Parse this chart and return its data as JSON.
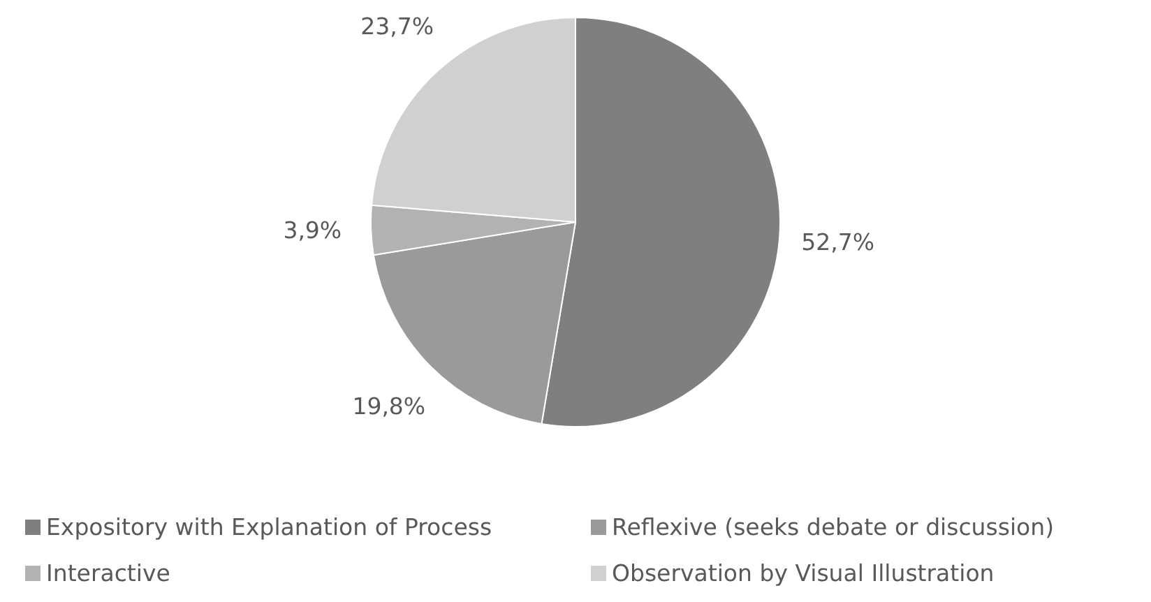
{
  "chart_data": {
    "type": "pie",
    "categories": [
      "Expository with Explanation of Process",
      "Reflexive (seeks debate or discussion)",
      "Interactive",
      "Observation by Visual Illustration"
    ],
    "values": [
      52.7,
      19.8,
      3.9,
      23.7
    ],
    "colors": [
      "#7f7f7f",
      "#9a9a9a",
      "#b2b2b2",
      "#d0d0d0"
    ],
    "value_labels": [
      "52,7%",
      "19,8%",
      "3,9%",
      "23,7%"
    ],
    "legend": "bottom"
  }
}
